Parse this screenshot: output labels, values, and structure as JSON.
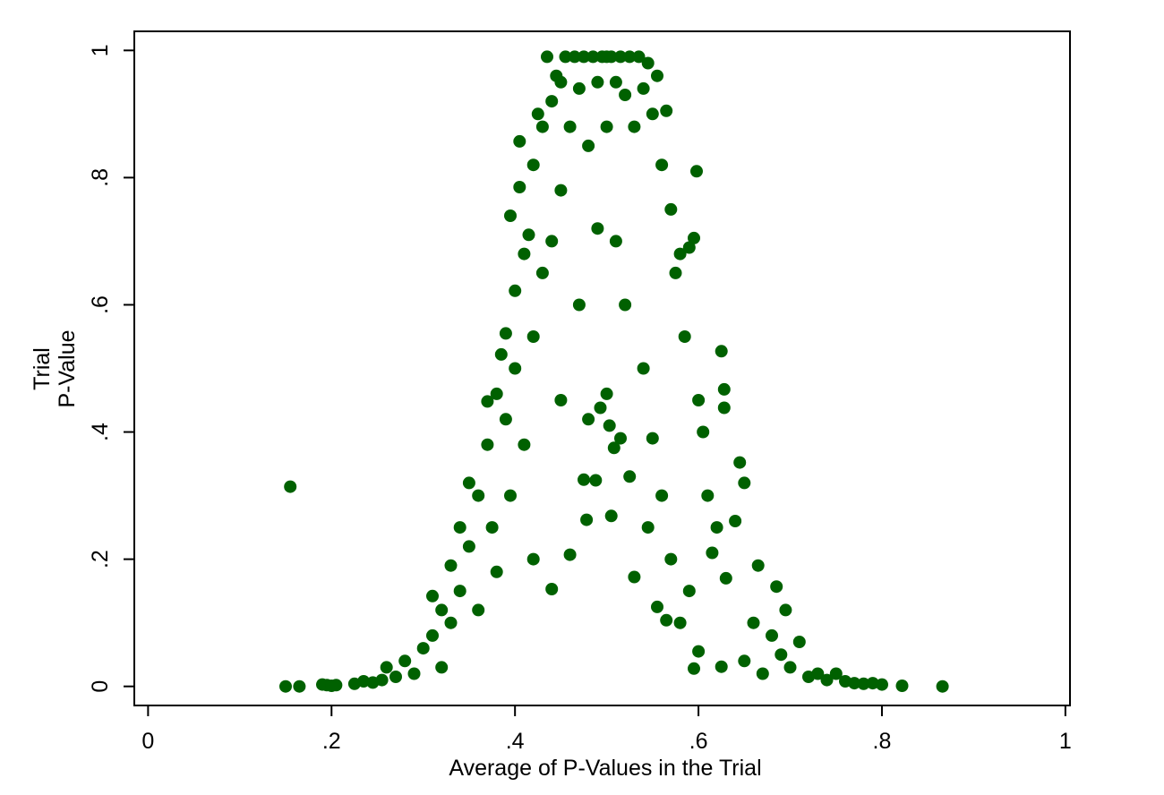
{
  "chart_data": {
    "type": "scatter",
    "title": "",
    "xlabel": "Average of P-Values in the Trial",
    "ylabel_lines": [
      "Trial",
      "P-Value"
    ],
    "xlim": [
      -0.015,
      1.005
    ],
    "ylim": [
      -0.03,
      1.03
    ],
    "x_ticks": [
      0,
      0.2,
      0.4,
      0.6,
      0.8,
      1
    ],
    "x_tick_labels": [
      "0",
      ".2",
      ".4",
      ".6",
      ".8",
      "1"
    ],
    "y_ticks": [
      0,
      0.2,
      0.4,
      0.6,
      0.8,
      1
    ],
    "y_tick_labels": [
      "0",
      ".2",
      ".4",
      ".6",
      ".8",
      "1"
    ],
    "grid": false,
    "legend": "none",
    "marker_color": "#006100",
    "series": [
      {
        "points": [
          [
            0.15,
            0.0
          ],
          [
            0.155,
            0.314
          ],
          [
            0.165,
            0.0
          ],
          [
            0.19,
            0.003
          ],
          [
            0.195,
            0.002
          ],
          [
            0.2,
            0.001
          ],
          [
            0.205,
            0.002
          ],
          [
            0.225,
            0.004
          ],
          [
            0.235,
            0.008
          ],
          [
            0.245,
            0.006
          ],
          [
            0.255,
            0.01
          ],
          [
            0.26,
            0.03
          ],
          [
            0.27,
            0.015
          ],
          [
            0.28,
            0.04
          ],
          [
            0.29,
            0.02
          ],
          [
            0.3,
            0.06
          ],
          [
            0.31,
            0.08
          ],
          [
            0.31,
            0.142
          ],
          [
            0.32,
            0.12
          ],
          [
            0.32,
            0.03
          ],
          [
            0.33,
            0.19
          ],
          [
            0.33,
            0.1
          ],
          [
            0.34,
            0.15
          ],
          [
            0.34,
            0.25
          ],
          [
            0.35,
            0.22
          ],
          [
            0.35,
            0.32
          ],
          [
            0.36,
            0.3
          ],
          [
            0.36,
            0.12
          ],
          [
            0.37,
            0.448
          ],
          [
            0.37,
            0.38
          ],
          [
            0.375,
            0.25
          ],
          [
            0.38,
            0.46
          ],
          [
            0.38,
            0.18
          ],
          [
            0.385,
            0.522
          ],
          [
            0.39,
            0.555
          ],
          [
            0.39,
            0.42
          ],
          [
            0.395,
            0.74
          ],
          [
            0.395,
            0.3
          ],
          [
            0.4,
            0.622
          ],
          [
            0.4,
            0.5
          ],
          [
            0.405,
            0.785
          ],
          [
            0.405,
            0.857
          ],
          [
            0.41,
            0.68
          ],
          [
            0.41,
            0.38
          ],
          [
            0.415,
            0.71
          ],
          [
            0.42,
            0.82
          ],
          [
            0.42,
            0.55
          ],
          [
            0.42,
            0.2
          ],
          [
            0.425,
            0.9
          ],
          [
            0.43,
            0.88
          ],
          [
            0.43,
            0.65
          ],
          [
            0.435,
            0.99
          ],
          [
            0.44,
            0.92
          ],
          [
            0.44,
            0.7
          ],
          [
            0.44,
            0.153
          ],
          [
            0.445,
            0.96
          ],
          [
            0.45,
            0.95
          ],
          [
            0.45,
            0.78
          ],
          [
            0.45,
            0.45
          ],
          [
            0.455,
            0.99
          ],
          [
            0.46,
            0.88
          ],
          [
            0.46,
            0.207
          ],
          [
            0.465,
            0.99
          ],
          [
            0.47,
            0.94
          ],
          [
            0.47,
            0.6
          ],
          [
            0.475,
            0.99
          ],
          [
            0.475,
            0.325
          ],
          [
            0.478,
            0.262
          ],
          [
            0.48,
            0.85
          ],
          [
            0.48,
            0.42
          ],
          [
            0.485,
            0.99
          ],
          [
            0.488,
            0.324
          ],
          [
            0.49,
            0.95
          ],
          [
            0.49,
            0.72
          ],
          [
            0.493,
            0.438
          ],
          [
            0.495,
            0.99
          ],
          [
            0.5,
            0.99
          ],
          [
            0.5,
            0.88
          ],
          [
            0.5,
            0.46
          ],
          [
            0.503,
            0.41
          ],
          [
            0.505,
            0.99
          ],
          [
            0.505,
            0.268
          ],
          [
            0.508,
            0.375
          ],
          [
            0.51,
            0.95
          ],
          [
            0.51,
            0.7
          ],
          [
            0.515,
            0.99
          ],
          [
            0.515,
            0.39
          ],
          [
            0.52,
            0.93
          ],
          [
            0.52,
            0.6
          ],
          [
            0.525,
            0.99
          ],
          [
            0.525,
            0.33
          ],
          [
            0.53,
            0.88
          ],
          [
            0.53,
            0.172
          ],
          [
            0.535,
            0.99
          ],
          [
            0.54,
            0.94
          ],
          [
            0.54,
            0.5
          ],
          [
            0.545,
            0.98
          ],
          [
            0.545,
            0.25
          ],
          [
            0.55,
            0.9
          ],
          [
            0.55,
            0.39
          ],
          [
            0.555,
            0.96
          ],
          [
            0.555,
            0.125
          ],
          [
            0.56,
            0.82
          ],
          [
            0.56,
            0.3
          ],
          [
            0.565,
            0.905
          ],
          [
            0.565,
            0.104
          ],
          [
            0.57,
            0.75
          ],
          [
            0.57,
            0.2
          ],
          [
            0.575,
            0.65
          ],
          [
            0.58,
            0.68
          ],
          [
            0.58,
            0.1
          ],
          [
            0.585,
            0.55
          ],
          [
            0.59,
            0.69
          ],
          [
            0.59,
            0.15
          ],
          [
            0.595,
            0.705
          ],
          [
            0.595,
            0.028
          ],
          [
            0.598,
            0.81
          ],
          [
            0.6,
            0.45
          ],
          [
            0.6,
            0.055
          ],
          [
            0.605,
            0.4
          ],
          [
            0.61,
            0.3
          ],
          [
            0.615,
            0.21
          ],
          [
            0.62,
            0.25
          ],
          [
            0.625,
            0.527
          ],
          [
            0.625,
            0.031
          ],
          [
            0.628,
            0.467
          ],
          [
            0.628,
            0.438
          ],
          [
            0.63,
            0.17
          ],
          [
            0.64,
            0.26
          ],
          [
            0.645,
            0.352
          ],
          [
            0.65,
            0.32
          ],
          [
            0.65,
            0.04
          ],
          [
            0.66,
            0.1
          ],
          [
            0.665,
            0.19
          ],
          [
            0.67,
            0.02
          ],
          [
            0.68,
            0.08
          ],
          [
            0.685,
            0.157
          ],
          [
            0.69,
            0.05
          ],
          [
            0.695,
            0.12
          ],
          [
            0.7,
            0.03
          ],
          [
            0.71,
            0.07
          ],
          [
            0.72,
            0.015
          ],
          [
            0.73,
            0.02
          ],
          [
            0.74,
            0.01
          ],
          [
            0.75,
            0.02
          ],
          [
            0.76,
            0.008
          ],
          [
            0.77,
            0.005
          ],
          [
            0.78,
            0.004
          ],
          [
            0.79,
            0.005
          ],
          [
            0.8,
            0.003
          ],
          [
            0.822,
            0.001
          ],
          [
            0.866,
            0.0
          ]
        ]
      }
    ]
  }
}
